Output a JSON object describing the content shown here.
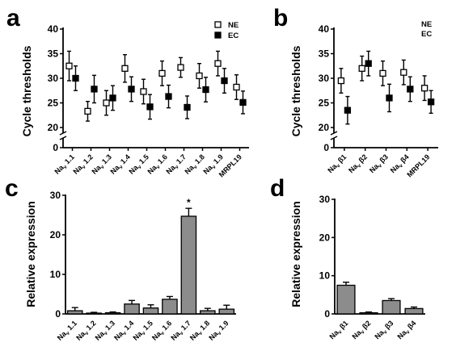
{
  "chart_data": [
    {
      "panel": "a",
      "type": "scatter",
      "ylabel": "Cycle thresholds",
      "ylim": [
        0,
        40
      ],
      "yticks": [
        0,
        20,
        25,
        30,
        35,
        40
      ],
      "axis_break": true,
      "legend": {
        "placement": "top-right",
        "entries": [
          "NE",
          "EC"
        ]
      },
      "categories": [
        [
          "Na",
          "v",
          "1.1"
        ],
        [
          "Na",
          "v",
          "1.2"
        ],
        [
          "Na",
          "v",
          "1.3"
        ],
        [
          "Na",
          "v",
          "1.4"
        ],
        [
          "Na",
          "v",
          "1.5"
        ],
        [
          "Na",
          "v",
          "1.6"
        ],
        [
          "Na",
          "v",
          "1.7"
        ],
        [
          "Na",
          "v",
          "1.8"
        ],
        [
          "Na",
          "v",
          "1.9"
        ],
        [
          "MRPL19",
          "",
          ""
        ]
      ],
      "series": [
        {
          "name": "NE",
          "marker": "open-square",
          "values": [
            32.5,
            23.3,
            25.0,
            32.0,
            27.3,
            31.0,
            32.2,
            30.5,
            33.0,
            28.2
          ],
          "errors": [
            3.0,
            2.0,
            2.5,
            2.8,
            2.5,
            2.5,
            2.0,
            2.5,
            2.5,
            2.5
          ]
        },
        {
          "name": "EC",
          "marker": "filled-square",
          "values": [
            30.0,
            27.8,
            26.0,
            27.8,
            24.2,
            26.3,
            24.1,
            27.7,
            29.5,
            25.1
          ],
          "errors": [
            2.5,
            2.8,
            2.5,
            2.5,
            2.5,
            2.3,
            2.3,
            2.5,
            2.5,
            2.3
          ]
        }
      ]
    },
    {
      "panel": "b",
      "type": "scatter",
      "ylabel": "Cycle thresholds",
      "ylim": [
        0,
        40
      ],
      "yticks": [
        0,
        20,
        25,
        30,
        35,
        40
      ],
      "axis_break": true,
      "legend": {
        "placement": "top-right",
        "entries": [
          "NE",
          "EC"
        ]
      },
      "categories": [
        [
          "Na",
          "v",
          "β1"
        ],
        [
          "Na",
          "v",
          "β2"
        ],
        [
          "Na",
          "v",
          "β3"
        ],
        [
          "Na",
          "v",
          "β4"
        ],
        [
          "MRPL19",
          "",
          ""
        ]
      ],
      "series": [
        {
          "name": "NE",
          "marker": "open-square",
          "values": [
            29.5,
            32.0,
            31.0,
            31.2,
            28.0
          ],
          "errors": [
            2.5,
            2.5,
            2.5,
            2.5,
            2.5
          ]
        },
        {
          "name": "EC",
          "marker": "filled-square",
          "values": [
            23.5,
            33.0,
            26.0,
            27.8,
            25.2
          ],
          "errors": [
            2.8,
            2.5,
            2.8,
            2.5,
            2.3
          ]
        }
      ]
    },
    {
      "panel": "c",
      "type": "bar",
      "ylabel": "Relative expression",
      "ylim": [
        0,
        30
      ],
      "yticks": [
        0,
        10,
        20,
        30
      ],
      "categories": [
        [
          "Na",
          "v",
          "1.1"
        ],
        [
          "Na",
          "v",
          "1.2"
        ],
        [
          "Na",
          "v",
          "1.3"
        ],
        [
          "Na",
          "v",
          "1.4"
        ],
        [
          "Na",
          "v",
          "1.5"
        ],
        [
          "Na",
          "v",
          "1.6"
        ],
        [
          "Na",
          "v",
          "1.7"
        ],
        [
          "Na",
          "v",
          "1.8"
        ],
        [
          "Na",
          "v",
          "1.9"
        ]
      ],
      "values": [
        0.8,
        0.2,
        0.3,
        2.5,
        1.5,
        3.7,
        24.7,
        0.8,
        1.2
      ],
      "errors": [
        0.8,
        0.2,
        0.2,
        0.9,
        0.8,
        0.7,
        2.0,
        0.6,
        1.0
      ],
      "annotations": [
        {
          "category_index": 6,
          "text": "*"
        }
      ]
    },
    {
      "panel": "d",
      "type": "bar",
      "ylabel": "Relative expression",
      "ylim": [
        0,
        30
      ],
      "yticks": [
        0,
        10,
        20,
        30
      ],
      "categories": [
        [
          "Na",
          "v",
          "β1"
        ],
        [
          "Na",
          "v",
          "β2"
        ],
        [
          "Na",
          "v",
          "β3"
        ],
        [
          "Na",
          "v",
          "β4"
        ]
      ],
      "values": [
        7.5,
        0.3,
        3.5,
        1.4
      ],
      "errors": [
        0.8,
        0.2,
        0.5,
        0.4
      ]
    }
  ],
  "colors": {
    "bar_fill": "#8c8c8c",
    "marker_filled": "#000000",
    "marker_open": "#ffffff",
    "axis": "#000000"
  }
}
